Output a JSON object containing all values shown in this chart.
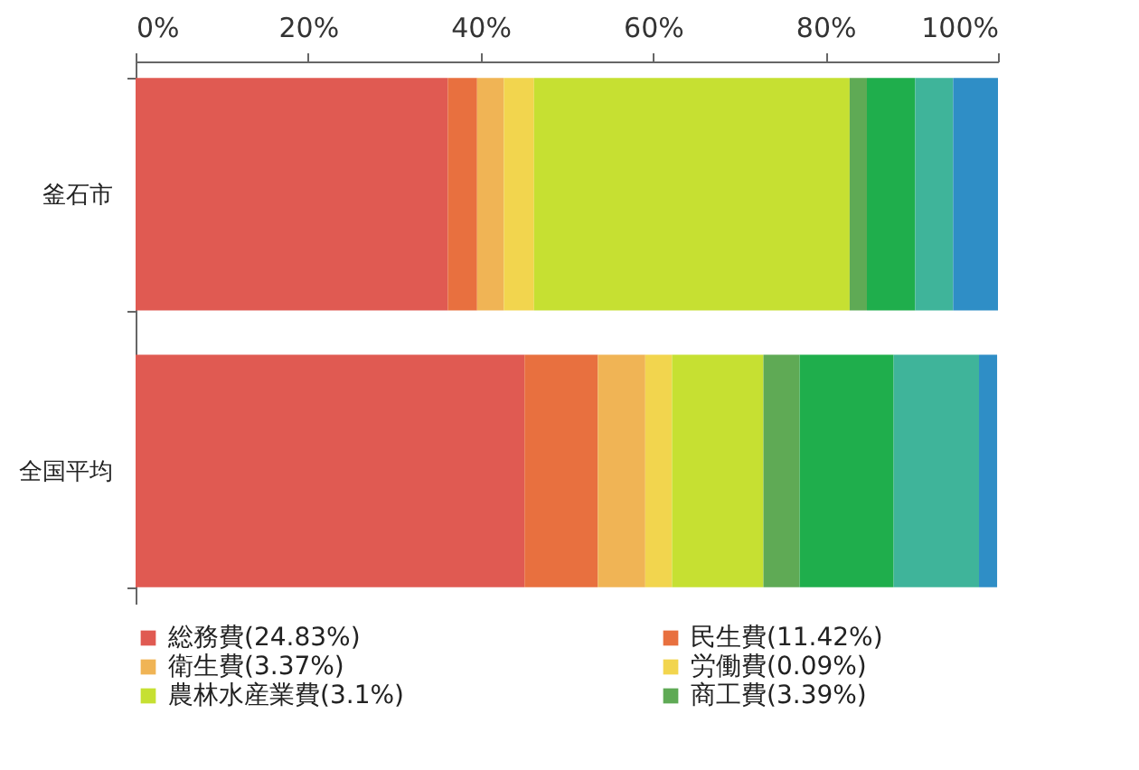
{
  "chart_data": {
    "type": "bar",
    "orientation": "horizontal",
    "stacked": true,
    "categories": [
      "釜石市",
      "全国平均"
    ],
    "series": [
      {
        "name": "総務費(24.83%)",
        "color": "#e05a52",
        "values": [
          36.2,
          45.1
        ]
      },
      {
        "name": "民生費(11.42%)",
        "color": "#e8703f",
        "values": [
          3.4,
          8.5
        ]
      },
      {
        "name": "衛生費(3.37%)",
        "color": "#f0b455",
        "values": [
          3.1,
          5.5
        ]
      },
      {
        "name": "労働費(0.09%)",
        "color": "#f2d54e",
        "values": [
          3.5,
          3.1
        ]
      },
      {
        "name": "農林水産業費(3.1%)",
        "color": "#c6e032",
        "values": [
          36.6,
          10.6
        ]
      },
      {
        "name": "商工費(3.39%)",
        "color": "#5faa55",
        "values": [
          2.0,
          4.2
        ]
      },
      {
        "color": "#1fae4c",
        "values": [
          5.6,
          10.9
        ]
      },
      {
        "color": "#3fb49a",
        "values": [
          4.4,
          9.9
        ]
      },
      {
        "color": "#2f8ec6",
        "values": [
          5.2,
          2.1
        ]
      }
    ],
    "xlim": [
      0,
      100
    ],
    "xticks": [
      {
        "value": 0,
        "label": "0%"
      },
      {
        "value": 20,
        "label": "20%"
      },
      {
        "value": 40,
        "label": "40%"
      },
      {
        "value": 60,
        "label": "60%"
      },
      {
        "value": 80,
        "label": "80%"
      },
      {
        "value": 100,
        "label": "100%"
      }
    ],
    "grid": false,
    "legend": "bottom"
  }
}
